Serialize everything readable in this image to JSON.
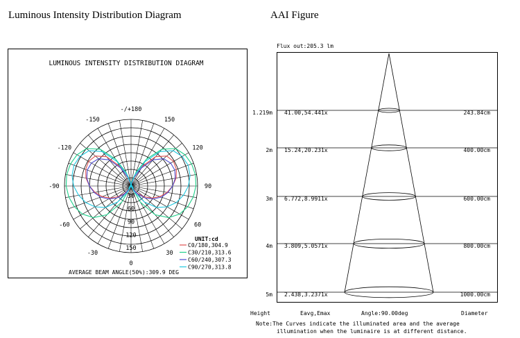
{
  "headers": {
    "left": "Luminous Intensity Distribution Diagram",
    "right": "AAI Figure"
  },
  "chart_data": [
    {
      "type": "polar",
      "title": "LUMINOUS INTENSITY DISTRIBUTION DIAGRAM",
      "unit_label": "UNIT:cd",
      "radial_ticks": [
        "30",
        "60",
        "90",
        "120",
        "150"
      ],
      "angle_labels": [
        {
          "deg": 180,
          "label": "-/+180"
        },
        {
          "deg": 150,
          "label": "150"
        },
        {
          "deg": 120,
          "label": "120"
        },
        {
          "deg": 90,
          "label": "90"
        },
        {
          "deg": 60,
          "label": "60"
        },
        {
          "deg": 30,
          "label": "30"
        },
        {
          "deg": 0,
          "label": "0"
        },
        {
          "deg": -30,
          "label": "-30"
        },
        {
          "deg": -60,
          "label": "-60"
        },
        {
          "deg": -90,
          "label": "-90"
        },
        {
          "deg": -120,
          "label": "-120"
        },
        {
          "deg": -150,
          "label": "-150"
        }
      ],
      "series": [
        {
          "name": "C0/180,304.9",
          "color": "#e05050",
          "r": [
            0,
            5,
            20,
            55,
            92,
            112,
            118,
            116,
            110,
            100,
            88,
            74,
            58,
            40,
            22,
            8,
            0
          ],
          "theta": [
            0,
            10,
            20,
            30,
            40,
            50,
            60,
            70,
            80,
            90,
            100,
            110,
            120,
            130,
            140,
            150,
            160
          ]
        },
        {
          "name": "C30/210,313.6",
          "color": "#1ed08a",
          "r": [
            0,
            10,
            35,
            75,
            115,
            140,
            150,
            155,
            157,
            156,
            152,
            145,
            135,
            118,
            90,
            45,
            0
          ],
          "theta": [
            0,
            10,
            20,
            30,
            40,
            50,
            60,
            70,
            80,
            90,
            100,
            110,
            120,
            130,
            140,
            150,
            160
          ]
        },
        {
          "name": "C60/240,307.3",
          "color": "#4a4ad0",
          "r": [
            0,
            6,
            22,
            50,
            82,
            102,
            110,
            112,
            108,
            100,
            90,
            78,
            62,
            45,
            25,
            9,
            0
          ],
          "theta": [
            0,
            10,
            20,
            30,
            40,
            50,
            60,
            70,
            80,
            90,
            100,
            110,
            120,
            130,
            140,
            150,
            160
          ]
        },
        {
          "name": "C90/270,313.8",
          "color": "#22c8e0",
          "r": [
            0,
            8,
            30,
            68,
            108,
            132,
            142,
            146,
            144,
            138,
            128,
            116,
            100,
            80,
            50,
            18,
            0
          ],
          "theta": [
            0,
            10,
            20,
            30,
            40,
            50,
            60,
            70,
            80,
            90,
            100,
            110,
            120,
            130,
            140,
            150,
            160
          ]
        }
      ],
      "beam_angle_text": "AVERAGE BEAM ANGLE(50%):309.9 DEG"
    },
    {
      "type": "table",
      "flux_text": "Flux out:205.3 lm",
      "angle_label": "Angle:90.00deg",
      "columns": [
        "Height",
        "Eavg,Emax",
        "Angle:90.00deg",
        "Diameter"
      ],
      "rows": [
        {
          "height": "1.219m",
          "eavg_emax": "41.00,54.441x",
          "diameter": "243.84cm"
        },
        {
          "height": "2m",
          "eavg_emax": "15.24,20.231x",
          "diameter": "400.00cm"
        },
        {
          "height": "3m",
          "eavg_emax": "6.772,8.9911x",
          "diameter": "600.00cm"
        },
        {
          "height": "4m",
          "eavg_emax": "3.809,5.0571x",
          "diameter": "800.00cm"
        },
        {
          "height": "5m",
          "eavg_emax": "2.438,3.2371x",
          "diameter": "1000.00cm"
        }
      ],
      "note_line1": "Note:The Curves indicate the illuminated area and the average",
      "note_line2": "illumination when the luminaire is at different distance."
    }
  ]
}
